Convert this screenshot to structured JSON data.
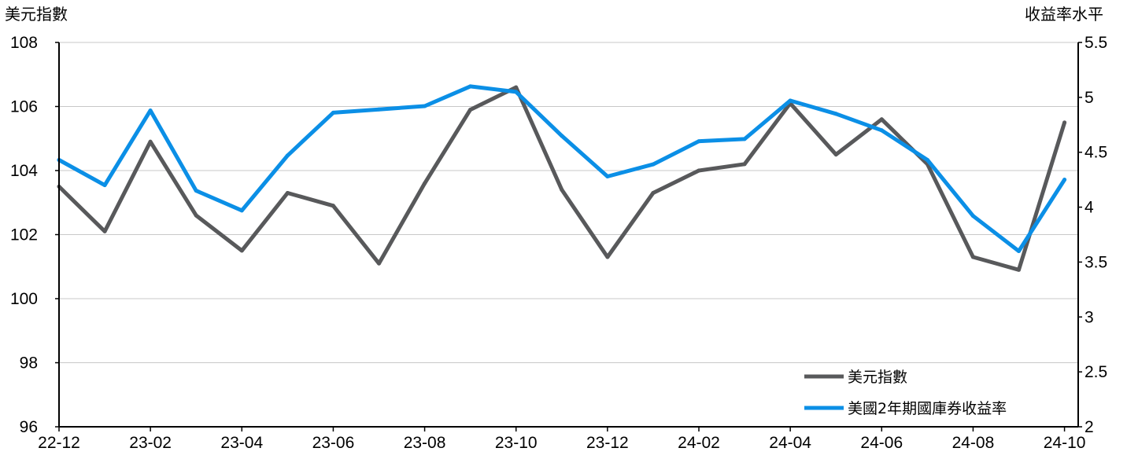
{
  "chart_data": {
    "type": "line",
    "title": "",
    "left_axis": {
      "label": "美元指數",
      "range": [
        96,
        108
      ],
      "ticks": [
        "96",
        "98",
        "100",
        "102",
        "104",
        "106",
        "108"
      ]
    },
    "right_axis": {
      "label": "收益率水平",
      "range": [
        2,
        5.5
      ],
      "ticks": [
        "2",
        "2.5",
        "3",
        "3.5",
        "4",
        "4.5",
        "5",
        "5.5"
      ]
    },
    "x_ticks": [
      "22-12",
      "23-02",
      "23-04",
      "23-06",
      "23-08",
      "23-10",
      "23-12",
      "24-02",
      "24-04",
      "24-06",
      "24-08",
      "24-10"
    ],
    "grid": true,
    "legend_position": "bottom-right",
    "x": [
      "22-12",
      "23-01",
      "23-02",
      "23-03",
      "23-04",
      "23-05",
      "23-06",
      "23-07",
      "23-08",
      "23-09",
      "23-10",
      "23-11",
      "23-12",
      "24-01",
      "24-02",
      "24-03",
      "24-04",
      "24-05",
      "24-06",
      "24-07",
      "24-08",
      "24-09",
      "24-10"
    ],
    "series": [
      {
        "name": "美元指數",
        "axis": "left",
        "color": "#58595b",
        "values": [
          103.5,
          102.1,
          104.9,
          102.6,
          101.5,
          103.3,
          102.9,
          101.1,
          103.6,
          105.9,
          106.6,
          103.4,
          101.3,
          103.3,
          104.0,
          104.2,
          106.1,
          104.5,
          105.6,
          104.2,
          101.3,
          100.9,
          105.5
        ]
      },
      {
        "name": "美國2年期國庫券收益率",
        "axis": "right",
        "color": "#0b8fe6",
        "values": [
          4.43,
          4.2,
          4.88,
          4.15,
          3.97,
          4.47,
          4.86,
          4.89,
          4.92,
          5.1,
          5.05,
          4.65,
          4.28,
          4.39,
          4.6,
          4.62,
          4.97,
          4.85,
          4.7,
          4.43,
          3.92,
          3.6,
          4.25
        ]
      }
    ]
  }
}
